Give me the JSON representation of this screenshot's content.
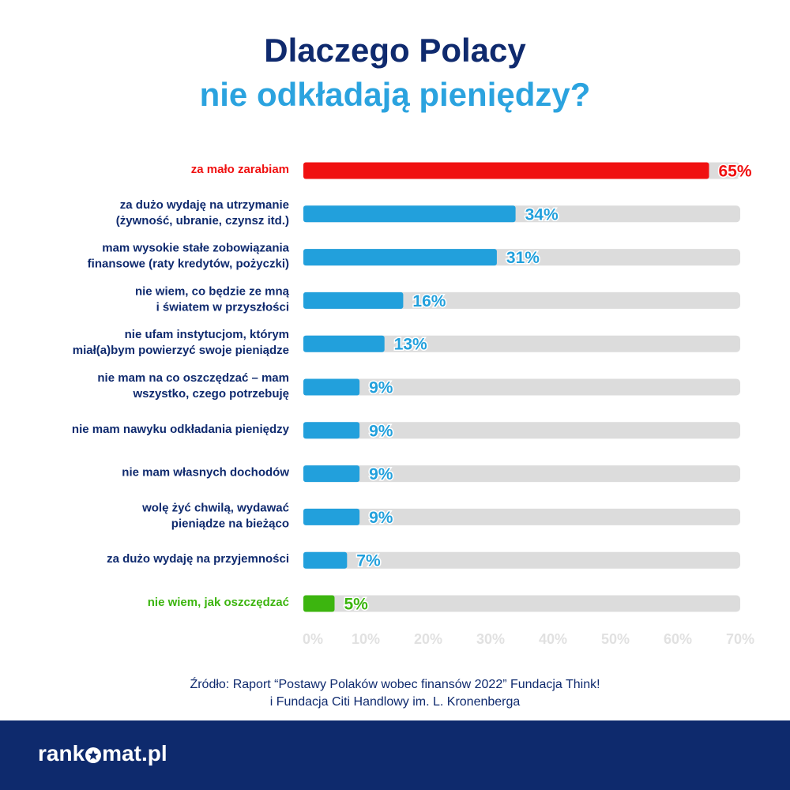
{
  "title_line1": "Dlaczego Polacy",
  "title_line2": "nie odkładają pieniędzy?",
  "colors": {
    "title_dark": "#0f2a6e",
    "title_light": "#2ba3df",
    "bar_default": "#22a0dc",
    "bar_highlight_red": "#f01010",
    "bar_highlight_green": "#3cb50f",
    "track": "#dcdcdc",
    "label_default": "#0f2a6e",
    "tick": "#e1e1e1"
  },
  "chart_data": {
    "type": "bar",
    "orientation": "horizontal",
    "unit": "%",
    "xlim": [
      0,
      70
    ],
    "ticks": [
      "0%",
      "10%",
      "20%",
      "30%",
      "40%",
      "50%",
      "60%",
      "70%"
    ],
    "categories": [
      [
        "za mało zarabiam"
      ],
      [
        "za dużo wydaję na utrzymanie",
        "(żywność, ubranie, czynsz itd.)"
      ],
      [
        "mam wysokie stałe zobowiązania",
        "finansowe (raty kredytów, pożyczki)"
      ],
      [
        "nie wiem, co będzie ze mną",
        "i światem w przyszłości"
      ],
      [
        "nie ufam instytucjom, którym",
        "miał(a)bym powierzyć swoje pieniądze"
      ],
      [
        "nie mam na co oszczędzać – mam",
        "wszystko, czego potrzebuję"
      ],
      [
        "nie mam nawyku odkładania pieniędzy"
      ],
      [
        "nie mam własnych dochodów"
      ],
      [
        "wolę żyć chwilą, wydawać",
        "pieniądze na bieżąco"
      ],
      [
        "za dużo wydaję na przyjemności"
      ],
      [
        "nie wiem, jak oszczędzać"
      ]
    ],
    "values": [
      65,
      34,
      31,
      16,
      13,
      9,
      9,
      9,
      9,
      7,
      5
    ],
    "value_labels": [
      "65%",
      "34%",
      "31%",
      "16%",
      "13%",
      "9%",
      "9%",
      "9%",
      "9%",
      "7%",
      "5%"
    ],
    "highlight": [
      "red",
      "default",
      "default",
      "default",
      "default",
      "default",
      "default",
      "default",
      "default",
      "default",
      "green"
    ]
  },
  "source_line1": "Źródło: Raport “Postawy Polaków wobec finansów 2022” Fundacja Think!",
  "source_line2": "i Fundacja Citi Handlowy im. L. Kronenberga",
  "logo": {
    "part1": "rank",
    "part2": "mat.pl",
    "icon": "star-icon"
  }
}
